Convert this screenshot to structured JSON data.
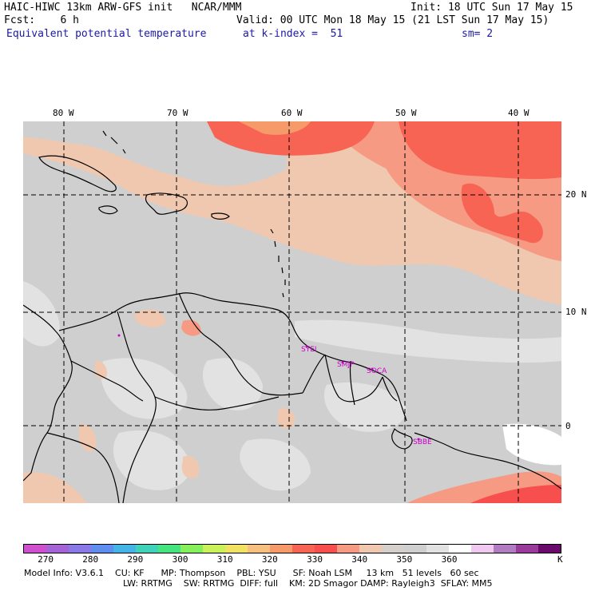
{
  "header": {
    "line1_left": "HAIC-HIWC 13km ARW-GFS init   NCAR/MMM",
    "line1_right": "Init: 18 UTC Sun 17 May 15",
    "line2_left": "Fcst:    6 h",
    "line2_right": "Valid: 00 UTC Mon 18 May 15 (21 LST Sun 17 May 15)",
    "line3_left": "Equivalent potential temperature",
    "line3_mid": "at k-index =  51",
    "line3_right": "sm= 2"
  },
  "axes": {
    "lon_labels": [
      "80 W",
      "70 W",
      "60 W",
      "50 W",
      "40 W"
    ],
    "lat_labels": [
      "20 N",
      "10 N",
      "0"
    ]
  },
  "stations": [
    "SYEI",
    "SMJP",
    "SOCA",
    "SBBE"
  ],
  "colorbar": {
    "colors": [
      "#cf4fcf",
      "#a464d6",
      "#8a78e6",
      "#5f8ef0",
      "#44b4e6",
      "#3fd2b8",
      "#45e47e",
      "#86ef5c",
      "#c9f25a",
      "#f2e264",
      "#f7c080",
      "#f79a6a",
      "#f76454",
      "#f74e4e",
      "#f69a84",
      "#f0c8b0",
      "#d6d0cc",
      "#cfcfcf",
      "#e2e2e2",
      "#ffffff",
      "#f0c8f0",
      "#b27cc0",
      "#9a3a9a",
      "#6a0a6a"
    ],
    "tick_labels": [
      "270",
      "280",
      "290",
      "300",
      "310",
      "320",
      "330",
      "340",
      "350",
      "360"
    ],
    "unit": "K"
  },
  "footer": {
    "line1": "Model Info: V3.6.1    CU: KF      MP: Thompson    PBL: YSU      SF: Noah LSM     13 km   51 levels   60 sec",
    "line2": "LW: RRTMG    SW: RRTMG  DIFF: full    KM: 2D Smagor DAMP: Rayleigh3  SFLAY: MM5"
  }
}
